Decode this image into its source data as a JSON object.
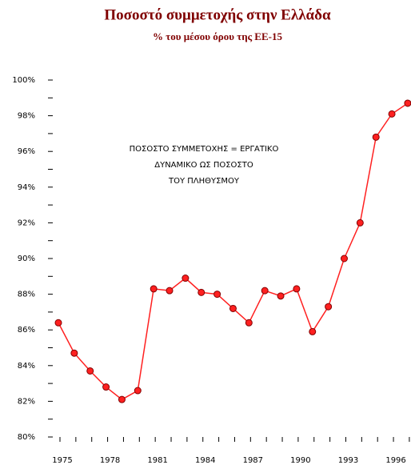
{
  "chart_data": {
    "type": "line",
    "title": "Ποσοστό συμμετοχής στην Ελλάδα",
    "subtitle": "% του μέσου όρου της ΕΕ-15",
    "annotation": [
      "ΠΟΣΟΣΤΟ ΣΥΜΜΕΤΟΧΗΣ = ΕΡΓΑΤΙΚΟ",
      "ΔΥΝΑΜΙΚΟ ΩΣ ΠΟΣΟΣΤΟ",
      "ΤΟΥ ΠΛΗΘΥΣΜΟΥ"
    ],
    "categories": [
      "1975",
      null,
      null,
      "1978",
      null,
      null,
      "1981",
      null,
      null,
      "1984",
      null,
      null,
      "1987",
      null,
      null,
      "1990",
      null,
      null,
      "1993",
      null,
      null,
      "1996",
      null
    ],
    "series": [
      {
        "name": "Ποσοστό συμμετοχής",
        "color": "#ff2020",
        "values": [
          86.4,
          84.7,
          83.7,
          82.8,
          82.1,
          82.6,
          88.3,
          88.2,
          88.9,
          88.1,
          88.0,
          87.2,
          86.4,
          88.2,
          87.9,
          88.3,
          85.9,
          87.3,
          90.0,
          92.0,
          96.8,
          98.1,
          98.7
        ]
      }
    ],
    "ylim": [
      80,
      100
    ],
    "yticks": [
      {
        "value": 80,
        "label": "80%"
      },
      {
        "value": 82,
        "label": "82%"
      },
      {
        "value": 84,
        "label": "84%"
      },
      {
        "value": 86,
        "label": "86%"
      },
      {
        "value": 88,
        "label": "88%"
      },
      {
        "value": 90,
        "label": "90%"
      },
      {
        "value": 92,
        "label": "92%"
      },
      {
        "value": 94,
        "label": "94%"
      },
      {
        "value": 96,
        "label": "96%"
      },
      {
        "value": 98,
        "label": "98%"
      },
      {
        "value": 100,
        "label": "100%"
      }
    ]
  }
}
